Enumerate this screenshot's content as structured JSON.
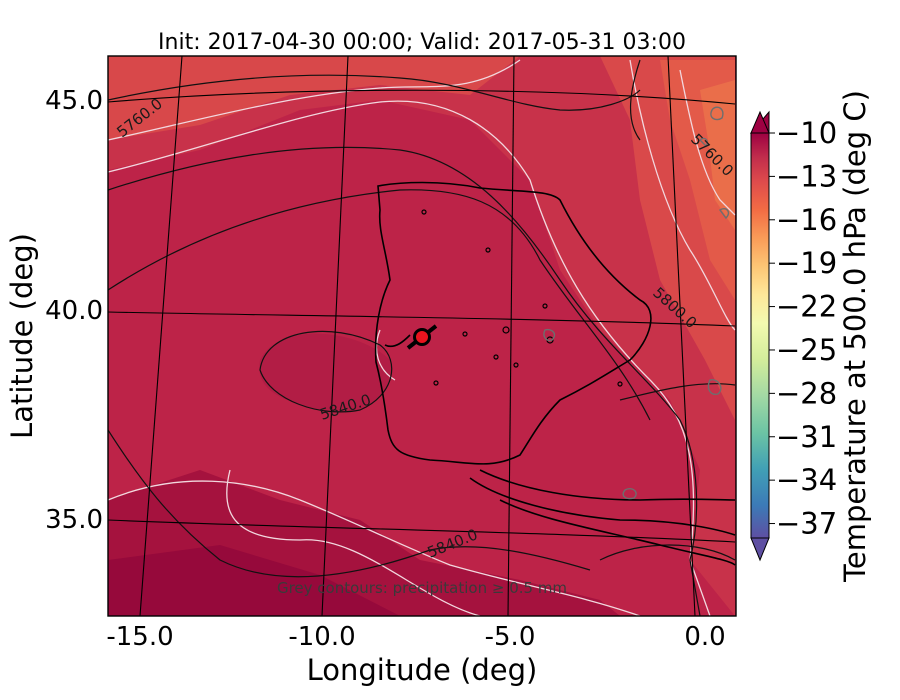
{
  "title": "Init: 2017-04-30 00:00; Valid: 2017-05-31 03:00",
  "axes": {
    "xlabel": "Longitude (deg)",
    "ylabel": "Latitude (deg)",
    "xticks": [
      "-15.0",
      "-10.0",
      "-5.0",
      "0.0"
    ],
    "yticks": [
      "45.0",
      "40.0",
      "35.0"
    ],
    "xlim": [
      -16,
      0
    ],
    "ylim": [
      32.5,
      46
    ]
  },
  "colorbar": {
    "label": "Temperature at 500.0 hPa (deg C)",
    "ticks": [
      "−10",
      "−13",
      "−16",
      "−19",
      "−22",
      "−25",
      "−28",
      "−31",
      "−34",
      "−37"
    ],
    "range": [
      -38,
      -10
    ],
    "colormap": "Spectral",
    "colors": [
      "#5e4fa2",
      "#3c7ab7",
      "#41a0b5",
      "#6cc4a4",
      "#a2d9a4",
      "#d3ed9b",
      "#f3fab0",
      "#fee89a",
      "#fdc675",
      "#fa9c58",
      "#f26c44",
      "#de4b4c",
      "#c12d4c",
      "#9e0142"
    ],
    "extend": "both"
  },
  "contour_labels": [
    "5760.0",
    "5760.0",
    "5800.0",
    "5840.0",
    "5840.0"
  ],
  "note": "Grey contours: precipitation ≥ 0.5 mm",
  "marker": {
    "lon": -7.5,
    "lat": 39.3,
    "color": "#e8141e"
  },
  "palette": {
    "field_main": "#bd2348",
    "field_dark": "#a5123e",
    "field_light": "#d24248",
    "field_warm": "#e0544a",
    "white_contours": "#f2d7de"
  }
}
